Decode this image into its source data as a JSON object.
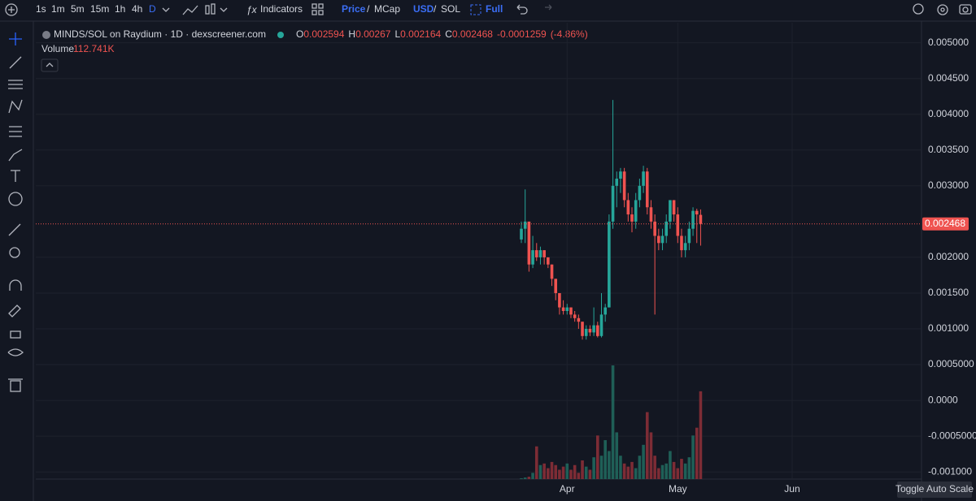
{
  "toolbar": {
    "intervals": [
      "1s",
      "1m",
      "5m",
      "15m",
      "1h",
      "4h",
      "D"
    ],
    "indicators": "Indicators",
    "price": "Price",
    "slash1": "/",
    "mcap": "MCap",
    "usd": "USD",
    "slash2": "/",
    "sol": "SOL",
    "full": "Full"
  },
  "legend": {
    "title": "MINDS/SOL on Raydium · 1D · dexscreener.com",
    "o": "O",
    "h": "H",
    "l": "L",
    "c": "C",
    "change": "-0.0001259",
    "change_pct": "(-4.86%)",
    "volume": "Volume",
    "volume_value": "112.741K"
  },
  "button": "Toggle Auto Scale",
  "chart": {
    "type": "candlestick",
    "up_color": "#26a69a",
    "down_color": "#ef5350",
    "volume_up_color": "#1f5f57",
    "volume_down_color": "#7d2c35",
    "ylim": [
      -0.0011,
      0.00528
    ],
    "yticks": [
      {
        "value": 0.005,
        "label": "0.005000"
      },
      {
        "value": 0.0045,
        "label": "0.004500"
      },
      {
        "value": 0.004,
        "label": "0.004000"
      },
      {
        "value": 0.0035,
        "label": "0.003500"
      },
      {
        "value": 0.003,
        "label": "0.003000"
      },
      {
        "value": 0.002,
        "label": "0.002000"
      },
      {
        "value": 0.0015,
        "label": "0.001500"
      },
      {
        "value": 0.001,
        "label": "0.001000"
      },
      {
        "value": 0.0005,
        "label": "0.0005000"
      },
      {
        "value": 0,
        "label": "0.0000"
      },
      {
        "value": -0.0005,
        "label": "-0.0005000"
      },
      {
        "value": -0.001,
        "label": "-0.001000"
      }
    ],
    "xticks": [
      {
        "value": 12,
        "label": "Apr"
      },
      {
        "value": 41,
        "label": "May"
      },
      {
        "value": 71,
        "label": "Jun"
      }
    ],
    "candles": [
      {
        "open": 0.00225,
        "high": 0.0025,
        "low": 0.0022,
        "close": 0.0024,
        "volume": 1
      },
      {
        "open": 0.0024,
        "high": 0.00295,
        "low": 0.0022,
        "close": 0.0025,
        "volume": 2
      },
      {
        "open": 0.0025,
        "high": 0.0025,
        "low": 0.0018,
        "close": 0.0019,
        "volume": 3
      },
      {
        "open": 0.0019,
        "high": 0.0023,
        "low": 0.00185,
        "close": 0.0021,
        "volume": 8
      },
      {
        "open": 0.0021,
        "high": 0.0022,
        "low": 0.00195,
        "close": 0.002,
        "volume": 42
      },
      {
        "open": 0.002,
        "high": 0.00215,
        "low": 0.0019,
        "close": 0.0021,
        "volume": 18
      },
      {
        "open": 0.0021,
        "high": 0.0021,
        "low": 0.0019,
        "close": 0.002,
        "volume": 20
      },
      {
        "open": 0.002,
        "high": 0.002,
        "low": 0.00185,
        "close": 0.0019,
        "volume": 14
      },
      {
        "open": 0.0019,
        "high": 0.0019,
        "low": 0.0016,
        "close": 0.0017,
        "volume": 22
      },
      {
        "open": 0.0017,
        "high": 0.0017,
        "low": 0.0014,
        "close": 0.0015,
        "volume": 18
      },
      {
        "open": 0.0015,
        "high": 0.0015,
        "low": 0.0012,
        "close": 0.0013,
        "volume": 12
      },
      {
        "open": 0.0013,
        "high": 0.0014,
        "low": 0.0012,
        "close": 0.00125,
        "volume": 16
      },
      {
        "open": 0.00125,
        "high": 0.00135,
        "low": 0.0012,
        "close": 0.0013,
        "volume": 20
      },
      {
        "open": 0.0013,
        "high": 0.0013,
        "low": 0.00115,
        "close": 0.0012,
        "volume": 12
      },
      {
        "open": 0.0012,
        "high": 0.00125,
        "low": 0.0011,
        "close": 0.00115,
        "volume": 18
      },
      {
        "open": 0.00115,
        "high": 0.0012,
        "low": 0.001,
        "close": 0.0011,
        "volume": 8
      },
      {
        "open": 0.0011,
        "high": 0.0011,
        "low": 0.00085,
        "close": 0.0009,
        "volume": 24
      },
      {
        "open": 0.0009,
        "high": 0.00105,
        "low": 0.00085,
        "close": 0.001,
        "volume": 16
      },
      {
        "open": 0.001,
        "high": 0.00105,
        "low": 0.0009,
        "close": 0.00095,
        "volume": 12
      },
      {
        "open": 0.00095,
        "high": 0.0013,
        "low": 0.0009,
        "close": 0.00105,
        "volume": 28
      },
      {
        "open": 0.00105,
        "high": 0.0011,
        "low": 0.00088,
        "close": 0.0009,
        "volume": 56
      },
      {
        "open": 0.0009,
        "high": 0.0015,
        "low": 0.00088,
        "close": 0.0012,
        "volume": 30
      },
      {
        "open": 0.0012,
        "high": 0.00135,
        "low": 0.0011,
        "close": 0.0013,
        "volume": 50
      },
      {
        "open": 0.0013,
        "high": 0.0026,
        "low": 0.0013,
        "close": 0.0025,
        "volume": 36
      },
      {
        "open": 0.0025,
        "high": 0.0042,
        "low": 0.0024,
        "close": 0.003,
        "volume": 146
      },
      {
        "open": 0.003,
        "high": 0.0032,
        "low": 0.0027,
        "close": 0.0031,
        "volume": 60
      },
      {
        "open": 0.0031,
        "high": 0.00325,
        "low": 0.0029,
        "close": 0.0032,
        "volume": 30
      },
      {
        "open": 0.0032,
        "high": 0.00325,
        "low": 0.0027,
        "close": 0.0028,
        "volume": 20
      },
      {
        "open": 0.0028,
        "high": 0.0029,
        "low": 0.0025,
        "close": 0.0026,
        "volume": 16
      },
      {
        "open": 0.0026,
        "high": 0.0027,
        "low": 0.00235,
        "close": 0.0025,
        "volume": 22
      },
      {
        "open": 0.0025,
        "high": 0.0029,
        "low": 0.0024,
        "close": 0.0028,
        "volume": 14
      },
      {
        "open": 0.0028,
        "high": 0.0031,
        "low": 0.0027,
        "close": 0.003,
        "volume": 30
      },
      {
        "open": 0.003,
        "high": 0.00328,
        "low": 0.0029,
        "close": 0.0032,
        "volume": 44
      },
      {
        "open": 0.0032,
        "high": 0.00325,
        "low": 0.0026,
        "close": 0.0027,
        "volume": 86
      },
      {
        "open": 0.0027,
        "high": 0.0028,
        "low": 0.0024,
        "close": 0.0025,
        "volume": 60
      },
      {
        "open": 0.0025,
        "high": 0.0026,
        "low": 0.0012,
        "close": 0.0023,
        "volume": 30
      },
      {
        "open": 0.0023,
        "high": 0.0024,
        "low": 0.0021,
        "close": 0.0022,
        "volume": 14
      },
      {
        "open": 0.0022,
        "high": 0.0024,
        "low": 0.0021,
        "close": 0.0023,
        "volume": 18
      },
      {
        "open": 0.0023,
        "high": 0.0026,
        "low": 0.0022,
        "close": 0.0025,
        "volume": 20
      },
      {
        "open": 0.0025,
        "high": 0.0028,
        "low": 0.0024,
        "close": 0.0028,
        "volume": 36
      },
      {
        "open": 0.0028,
        "high": 0.0028,
        "low": 0.0025,
        "close": 0.0026,
        "volume": 22
      },
      {
        "open": 0.0026,
        "high": 0.0027,
        "low": 0.0022,
        "close": 0.0023,
        "volume": 14
      },
      {
        "open": 0.0023,
        "high": 0.0024,
        "low": 0.002,
        "close": 0.0021,
        "volume": 26
      },
      {
        "open": 0.0021,
        "high": 0.0023,
        "low": 0.002,
        "close": 0.0022,
        "volume": 20
      },
      {
        "open": 0.0022,
        "high": 0.0025,
        "low": 0.0021,
        "close": 0.0024,
        "volume": 28
      },
      {
        "open": 0.0024,
        "high": 0.0027,
        "low": 0.0023,
        "close": 0.00265,
        "volume": 56
      },
      {
        "open": 0.00265,
        "high": 0.00268,
        "low": 0.0022,
        "close": 0.0026,
        "volume": 66
      },
      {
        "open": 0.002594,
        "high": 0.00267,
        "low": 0.002164,
        "close": 0.002468,
        "volume": 112.741
      }
    ]
  }
}
